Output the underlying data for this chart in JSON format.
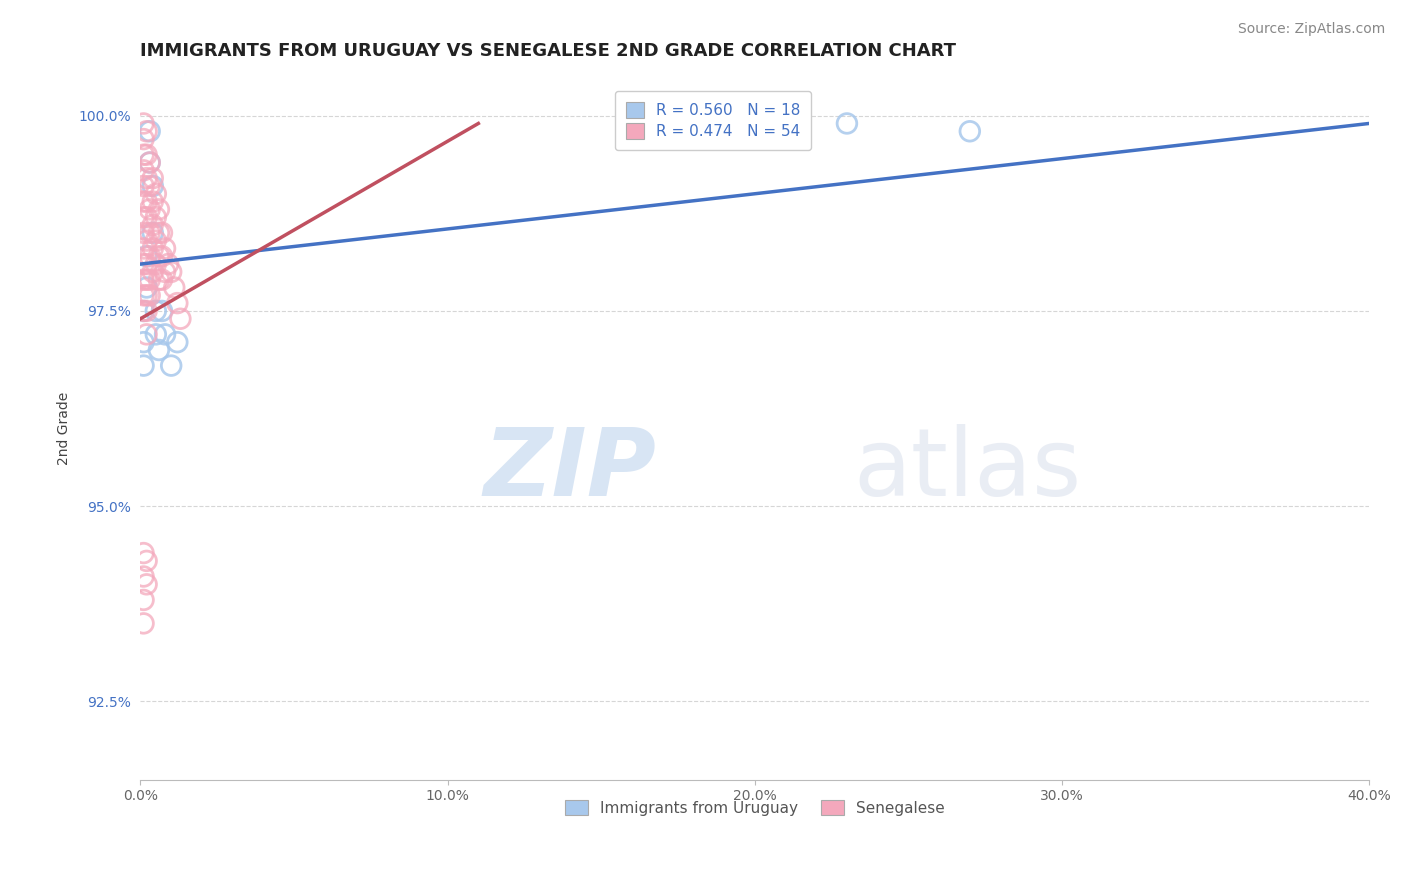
{
  "title": "IMMIGRANTS FROM URUGUAY VS SENEGALESE 2ND GRADE CORRELATION CHART",
  "source_text": "Source: ZipAtlas.com",
  "ylabel": "2nd Grade",
  "xlim": [
    0.0,
    0.4
  ],
  "ylim": [
    0.915,
    1.005
  ],
  "xticks": [
    0.0,
    0.1,
    0.2,
    0.3,
    0.4
  ],
  "xtick_labels": [
    "0.0%",
    "10.0%",
    "20.0%",
    "30.0%",
    "40.0%"
  ],
  "yticks": [
    0.925,
    0.95,
    0.975,
    1.0
  ],
  "ytick_labels": [
    "92.5%",
    "95.0%",
    "97.5%",
    "100.0%"
  ],
  "blue_R": 0.56,
  "blue_N": 18,
  "pink_R": 0.474,
  "pink_N": 54,
  "blue_color": "#A8C8EC",
  "pink_color": "#F4A8BC",
  "blue_line_color": "#4472C4",
  "pink_line_color": "#C05060",
  "legend_label_blue": "Immigrants from Uruguay",
  "legend_label_pink": "Senegalese",
  "watermark_zip": "ZIP",
  "watermark_atlas": "atlas",
  "title_fontsize": 13,
  "axis_label_fontsize": 10,
  "tick_fontsize": 10,
  "legend_fontsize": 11,
  "source_fontsize": 10,
  "background_color": "#FFFFFF",
  "grid_color": "#CCCCCC",
  "blue_points_x": [
    0.001,
    0.001,
    0.001,
    0.002,
    0.002,
    0.003,
    0.003,
    0.004,
    0.004,
    0.005,
    0.005,
    0.006,
    0.007,
    0.008,
    0.01,
    0.012,
    0.23,
    0.27
  ],
  "blue_points_y": [
    0.975,
    0.971,
    0.968,
    0.982,
    0.978,
    0.998,
    0.994,
    0.991,
    0.985,
    0.975,
    0.972,
    0.97,
    0.975,
    0.972,
    0.968,
    0.971,
    0.999,
    0.998
  ],
  "pink_points_x": [
    0.001,
    0.001,
    0.001,
    0.001,
    0.001,
    0.001,
    0.001,
    0.001,
    0.001,
    0.001,
    0.001,
    0.001,
    0.001,
    0.002,
    0.002,
    0.002,
    0.002,
    0.002,
    0.002,
    0.002,
    0.002,
    0.002,
    0.002,
    0.002,
    0.003,
    0.003,
    0.003,
    0.003,
    0.003,
    0.003,
    0.003,
    0.004,
    0.004,
    0.004,
    0.004,
    0.004,
    0.005,
    0.005,
    0.005,
    0.005,
    0.006,
    0.006,
    0.006,
    0.006,
    0.007,
    0.007,
    0.007,
    0.008,
    0.008,
    0.009,
    0.01,
    0.011,
    0.012,
    0.013
  ],
  "pink_points_y": [
    0.999,
    0.997,
    0.995,
    0.993,
    0.991,
    0.989,
    0.987,
    0.985,
    0.983,
    0.981,
    0.979,
    0.977,
    0.975,
    0.998,
    0.995,
    0.992,
    0.989,
    0.987,
    0.984,
    0.981,
    0.979,
    0.977,
    0.975,
    0.972,
    0.994,
    0.991,
    0.988,
    0.985,
    0.982,
    0.979,
    0.977,
    0.992,
    0.989,
    0.986,
    0.983,
    0.98,
    0.99,
    0.987,
    0.984,
    0.981,
    0.988,
    0.985,
    0.982,
    0.979,
    0.985,
    0.982,
    0.979,
    0.983,
    0.98,
    0.981,
    0.98,
    0.978,
    0.976,
    0.974
  ],
  "pink_low_points_x": [
    0.001,
    0.001,
    0.001,
    0.001,
    0.002,
    0.002
  ],
  "pink_low_points_y": [
    0.944,
    0.941,
    0.938,
    0.935,
    0.943,
    0.94
  ],
  "blue_line_x0": 0.0,
  "blue_line_y0": 0.981,
  "blue_line_x1": 0.4,
  "blue_line_y1": 0.999,
  "pink_line_x0": 0.0,
  "pink_line_y0": 0.974,
  "pink_line_x1": 0.11,
  "pink_line_y1": 0.999
}
